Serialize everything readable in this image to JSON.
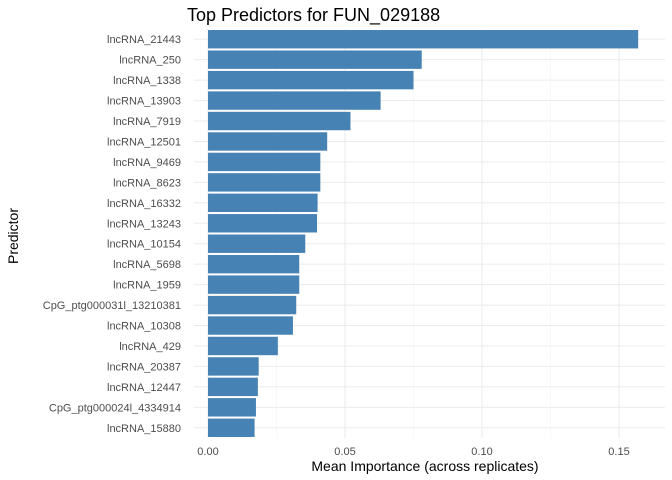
{
  "chart_data": {
    "type": "bar",
    "orientation": "horizontal",
    "title": "Top Predictors for FUN_029188",
    "xlabel": "Mean Importance (across replicates)",
    "ylabel": "Predictor",
    "xlim": [
      0,
      0.16
    ],
    "x_ticks": [
      "0.00",
      "0.05",
      "0.10",
      "0.15"
    ],
    "x_tick_values": [
      0,
      0.05,
      0.1,
      0.15
    ],
    "bar_color": "#4682B4",
    "grid": true,
    "categories": [
      "lncRNA_21443",
      "lncRNA_250",
      "lncRNA_1338",
      "lncRNA_13903",
      "lncRNA_7919",
      "lncRNA_12501",
      "lncRNA_9469",
      "lncRNA_8623",
      "lncRNA_16332",
      "lncRNA_13243",
      "lncRNA_10154",
      "lncRNA_5698",
      "lncRNA_1959",
      "CpG_ptg000031l_13210381",
      "lncRNA_10308",
      "lncRNA_429",
      "lncRNA_20387",
      "lncRNA_12447",
      "CpG_ptg000024l_4334914",
      "lncRNA_15880"
    ],
    "values": [
      0.157,
      0.078,
      0.075,
      0.063,
      0.052,
      0.0435,
      0.041,
      0.041,
      0.04,
      0.0398,
      0.0355,
      0.0333,
      0.0333,
      0.0322,
      0.031,
      0.0255,
      0.0185,
      0.0182,
      0.0175,
      0.017
    ]
  }
}
